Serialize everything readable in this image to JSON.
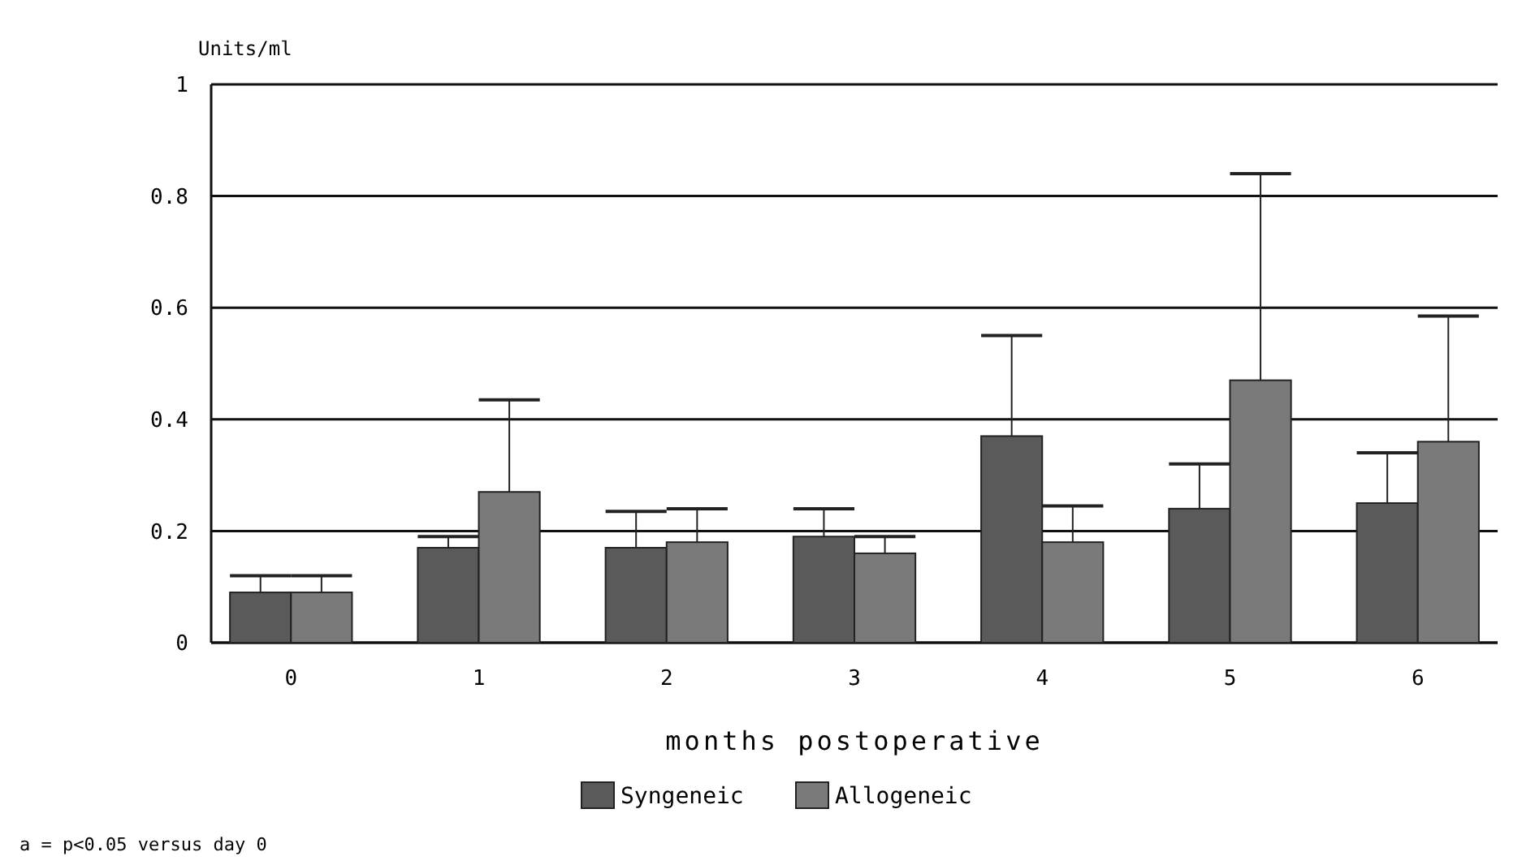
{
  "chart_data": {
    "type": "bar",
    "ylabel": "Units/ml",
    "xlabel": "months postoperative",
    "categories": [
      "0",
      "1",
      "2",
      "3",
      "4",
      "5",
      "6"
    ],
    "series": [
      {
        "name": "Syngeneic",
        "color": "#5a5a5a",
        "values": [
          0.09,
          0.17,
          0.17,
          0.19,
          0.37,
          0.24,
          0.25
        ],
        "errors": [
          [
            0.09,
            0.12
          ],
          [
            0.17,
            0.19
          ],
          [
            0.17,
            0.235
          ],
          [
            0.19,
            0.24
          ],
          [
            0.37,
            0.55
          ],
          [
            0.24,
            0.32
          ],
          [
            0.25,
            0.34
          ]
        ]
      },
      {
        "name": "Allogeneic",
        "color": "#7a7a7a",
        "values": [
          0.09,
          0.27,
          0.18,
          0.16,
          0.18,
          0.47,
          0.36
        ],
        "errors": [
          [
            0.09,
            0.12
          ],
          [
            0.27,
            0.435
          ],
          [
            0.18,
            0.24
          ],
          [
            0.16,
            0.19
          ],
          [
            0.18,
            0.245
          ],
          [
            0.47,
            0.84
          ],
          [
            0.36,
            0.585
          ]
        ]
      }
    ],
    "ylim": [
      0,
      1
    ],
    "yticks": [
      0,
      {
        "value": 0.2,
        "label": "0.2"
      },
      {
        "value": 0.4,
        "label": "0.4"
      },
      {
        "value": 0.6,
        "label": "0.6"
      },
      {
        "value": 0.8,
        "label": "0.8"
      },
      1
    ],
    "grid": "y",
    "legend": "bottom",
    "annotations": [
      "a = p<0.05 versus day 0"
    ]
  }
}
